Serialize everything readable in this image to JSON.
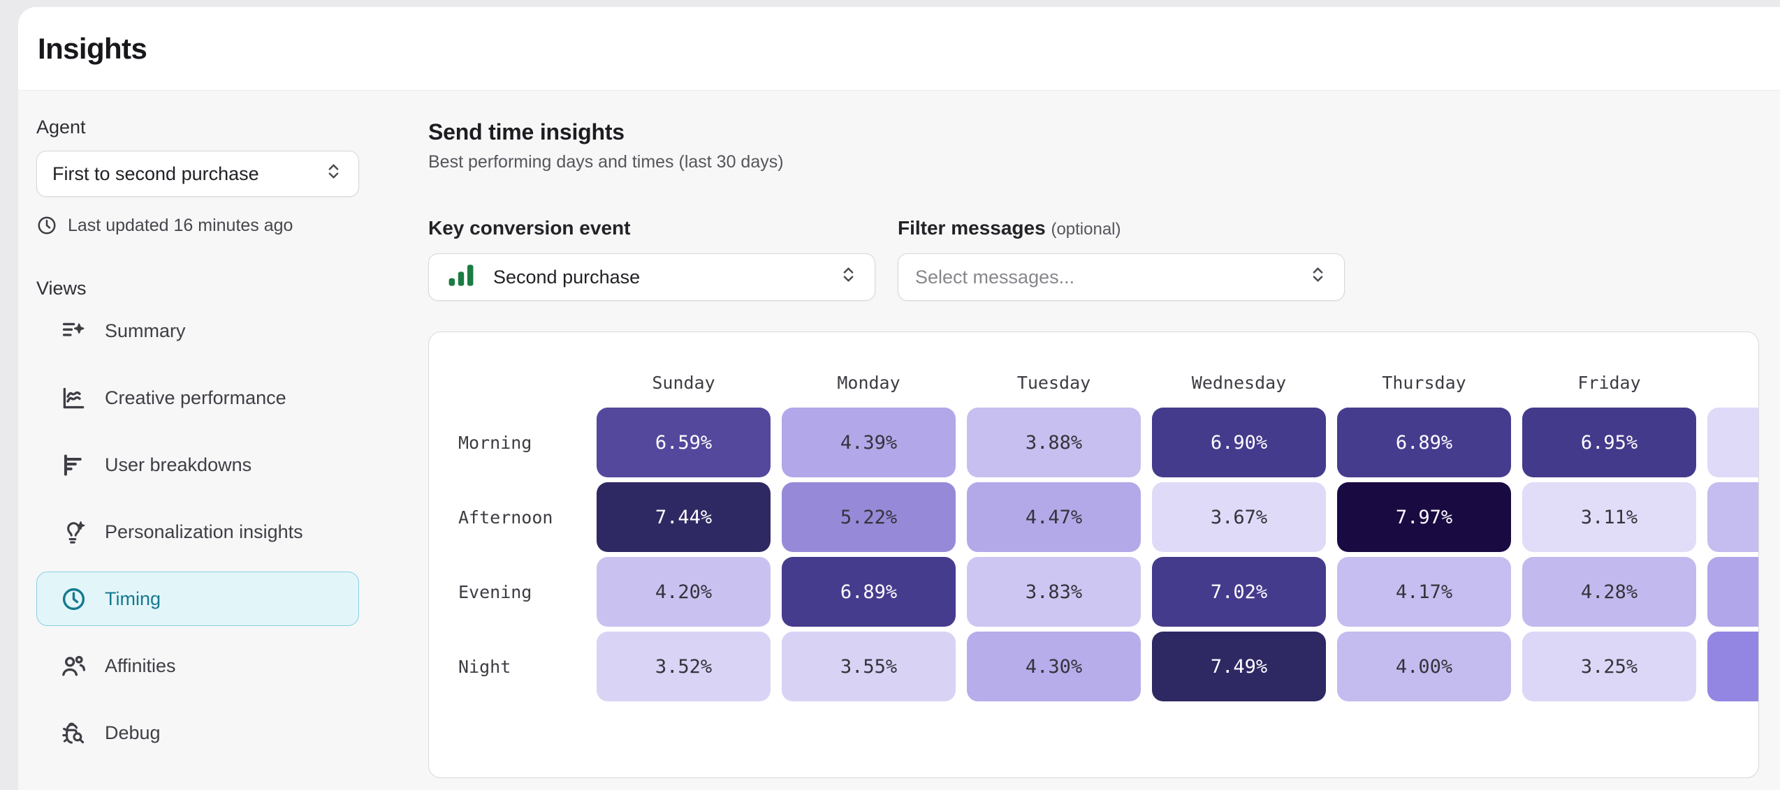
{
  "header": {
    "title": "Insights"
  },
  "sidebar": {
    "agent_label": "Agent",
    "agent_select": {
      "value": "First to second purchase",
      "icon": "chevron-up-down-icon"
    },
    "last_updated": "Last updated 16 minutes ago",
    "last_updated_icon": "clock-icon",
    "views_label": "Views",
    "items": [
      {
        "label": "Summary",
        "icon": "summary-list-sparkle-icon",
        "active": false
      },
      {
        "label": "Creative performance",
        "icon": "line-chart-icon",
        "active": false
      },
      {
        "label": "User breakdowns",
        "icon": "bar-chart-horizontal-icon",
        "active": false
      },
      {
        "label": "Personalization insights",
        "icon": "lightbulb-sparkle-icon",
        "active": false
      },
      {
        "label": "Timing",
        "icon": "clock-icon",
        "active": true
      },
      {
        "label": "Affinities",
        "icon": "users-icon",
        "active": false
      },
      {
        "label": "Debug",
        "icon": "bug-search-icon",
        "active": false
      }
    ]
  },
  "main": {
    "title": "Send time insights",
    "subtitle": "Best performing days and times (last 30 days)",
    "conversion_label": "Key conversion event",
    "conversion_select": {
      "value": "Second purchase",
      "icon": "green-bars-chart-icon"
    },
    "filter_label": "Filter messages",
    "filter_label_suffix": "(optional)",
    "filter_select": {
      "placeholder": "Select messages..."
    }
  },
  "colors": {
    "accent_teal_text": "#15798f",
    "accent_teal_bg": "#e2f6fa",
    "accent_teal_border": "#8ad0e0",
    "green_icon": "#1b7c43",
    "heatmap_darkest": "#1a0a42",
    "heatmap_lightest": "#e1ddf8"
  },
  "chart_data": {
    "type": "heatmap",
    "title": "Send time insights",
    "x_labels": [
      "Sunday",
      "Monday",
      "Tuesday",
      "Wednesday",
      "Thursday",
      "Friday"
    ],
    "clipped_seventh_column": true,
    "y_labels": [
      "Morning",
      "Afternoon",
      "Evening",
      "Night"
    ],
    "unit": "%",
    "values": [
      [
        6.59,
        4.39,
        3.88,
        6.9,
        6.89,
        6.95
      ],
      [
        7.44,
        5.22,
        4.47,
        3.67,
        7.97,
        3.11
      ],
      [
        4.2,
        6.89,
        3.83,
        7.02,
        4.17,
        4.28
      ],
      [
        3.52,
        3.55,
        4.3,
        7.49,
        4.0,
        3.25
      ]
    ],
    "cell_colors": [
      [
        "#53489c",
        "#b2a7e9",
        "#c7bfef",
        "#453b8d",
        "#463c8e",
        "#443a8c",
        "#dedaf7"
      ],
      [
        "#2f2963",
        "#968ad8",
        "#b3a9e9",
        "#dedaf7",
        "#1a0a42",
        "#e1ddf8",
        "#c5bcf0"
      ],
      [
        "#c9c2f1",
        "#463c8e",
        "#cdc6f2",
        "#453b8d",
        "#c6bdf0",
        "#c2b9ee",
        "#b2a6ea"
      ],
      [
        "#d9d3f5",
        "#d8d2f5",
        "#b7adeb",
        "#2e2863",
        "#c4bbef",
        "#dcd7f6",
        "#9286e2"
      ]
    ],
    "cell_text_dark": "#33333b",
    "cell_text_light": "#ffffff"
  }
}
